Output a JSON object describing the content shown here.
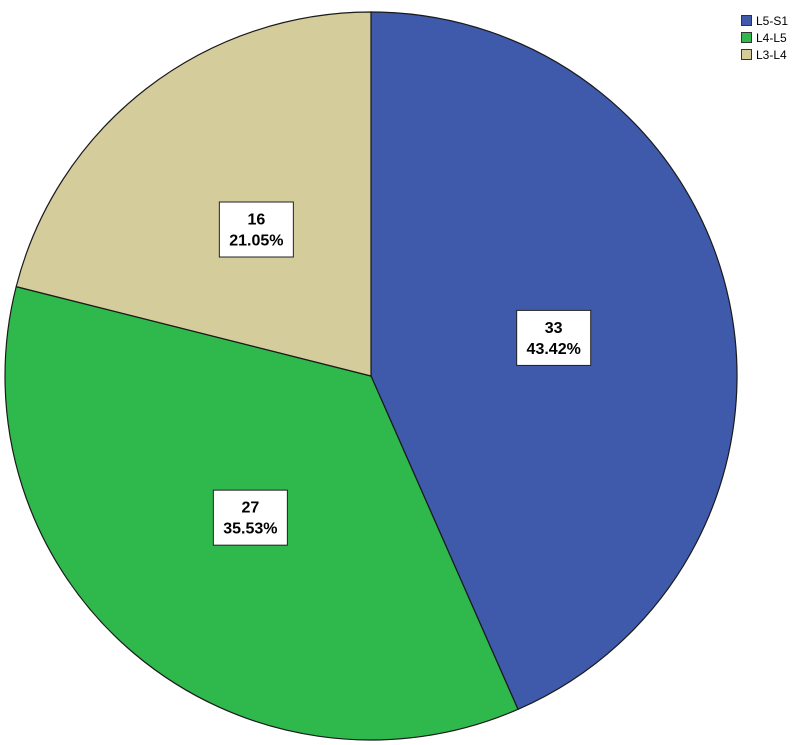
{
  "chart_data": {
    "type": "pie",
    "start": "12 o'clock, clockwise",
    "slices": [
      {
        "label": "L5-S1",
        "value": 33,
        "percent": "43.42%",
        "color": "#3f59ab"
      },
      {
        "label": "L4-L5",
        "value": 27,
        "percent": "35.53%",
        "color": "#2fb84b"
      },
      {
        "label": "L3-L4",
        "value": 16,
        "percent": "21.05%",
        "color": "#d4cc9b"
      }
    ],
    "legend": {
      "position": "top-right",
      "items": [
        "L5-S1",
        "L4-L5",
        "L3-L4"
      ]
    }
  }
}
